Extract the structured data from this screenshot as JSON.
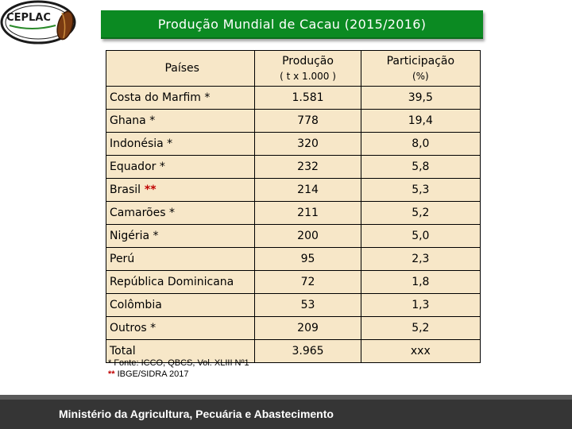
{
  "logo": {
    "text": "CEPLAC"
  },
  "title": "Produção Mundial de Cacau (2015/2016)",
  "table": {
    "headers": {
      "country": "Países",
      "production": "Produção",
      "production_unit": "( t x 1.000 )",
      "share": "Participação",
      "share_unit": "(%)"
    },
    "rows": [
      {
        "country": "Costa do Marfim",
        "mark": " *",
        "production": "1.581",
        "share": "39,5"
      },
      {
        "country": "Ghana",
        "mark": " *",
        "production": "778",
        "share": "19,4"
      },
      {
        "country": "Indonésia",
        "mark": " *",
        "production": "320",
        "share": "8,0"
      },
      {
        "country": "Equador",
        "mark": " *",
        "production": "232",
        "share": "5,8"
      },
      {
        "country": "Brasil",
        "mark": "",
        "red_mark": " **",
        "production": "214",
        "share": "5,3"
      },
      {
        "country": "Camarões",
        "mark": " *",
        "production": "211",
        "share": "5,2"
      },
      {
        "country": "Nigéria",
        "mark": " *",
        "production": "200",
        "share": "5,0"
      },
      {
        "country": "Perú",
        "mark": "",
        "production": "95",
        "share": "2,3"
      },
      {
        "country": "República Dominicana",
        "mark": "",
        "production": "72",
        "share": "1,8"
      },
      {
        "country": "Colômbia",
        "mark": "",
        "production": "53",
        "share": "1,3"
      },
      {
        "country": "Outros",
        "mark": " *",
        "production": "209",
        "share": "5,2"
      },
      {
        "country": "Total",
        "mark": "",
        "production": "3.965",
        "share": "xxx"
      }
    ]
  },
  "sources": {
    "line1": "* Fonte: ICCO, QBCS, Vol. XLIII Nº1",
    "line2_mark": "**",
    "line2": " IBGE/SIDRA 2017"
  },
  "footer": {
    "text": "Ministério da Agricultura, Pecuária e Abastecimento"
  },
  "colors": {
    "title_bar": "#0b8a22",
    "table_bg": "#f7e7c8",
    "footer_bg": "#353535",
    "red_mark": "#c00000"
  }
}
